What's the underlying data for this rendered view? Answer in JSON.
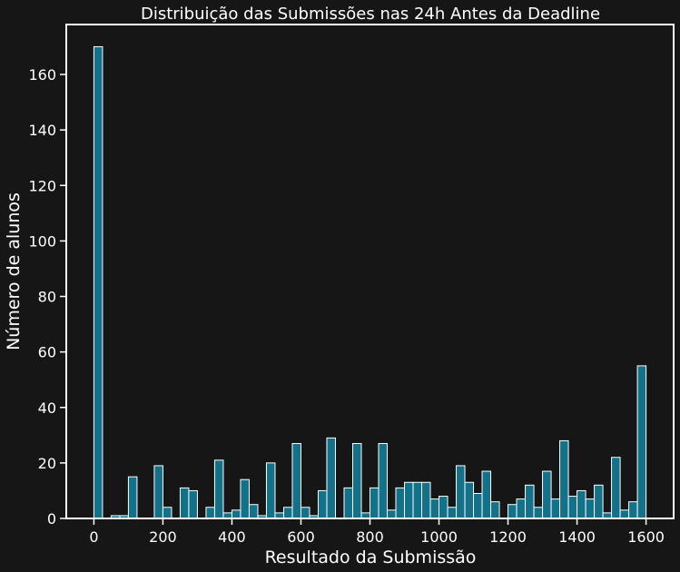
{
  "chart_data": {
    "type": "bar",
    "title": "Distribuição das Submissões nas 24h Antes da Deadline",
    "xlabel": "Resultado da Submissão",
    "ylabel": "Número de alunos",
    "xlim": [
      -80,
      1680
    ],
    "ylim": [
      0,
      178
    ],
    "xticks": [
      "0",
      "200",
      "400",
      "600",
      "800",
      "1000",
      "1200",
      "1400",
      "1600"
    ],
    "yticks": [
      "0",
      "20",
      "40",
      "60",
      "80",
      "100",
      "120",
      "140",
      "160"
    ],
    "bin_width": 25,
    "bin_start": 0,
    "values": [
      170,
      0,
      1,
      1,
      15,
      0,
      0,
      19,
      4,
      0,
      11,
      10,
      0,
      4,
      21,
      2,
      3,
      14,
      5,
      1,
      20,
      2,
      4,
      27,
      4,
      1,
      10,
      29,
      0,
      11,
      27,
      2,
      11,
      27,
      3,
      11,
      13,
      13,
      13,
      7,
      8,
      4,
      19,
      13,
      9,
      17,
      6,
      0,
      5,
      7,
      12,
      4,
      17,
      7,
      28,
      8,
      10,
      7,
      12,
      2,
      22,
      3,
      6,
      55
    ],
    "grid": false,
    "colors": {
      "background": "#161616",
      "bar_fill": "#13718a",
      "bar_edge": "#ffffff",
      "axis": "#ffffff",
      "text": "#ffffff"
    }
  }
}
